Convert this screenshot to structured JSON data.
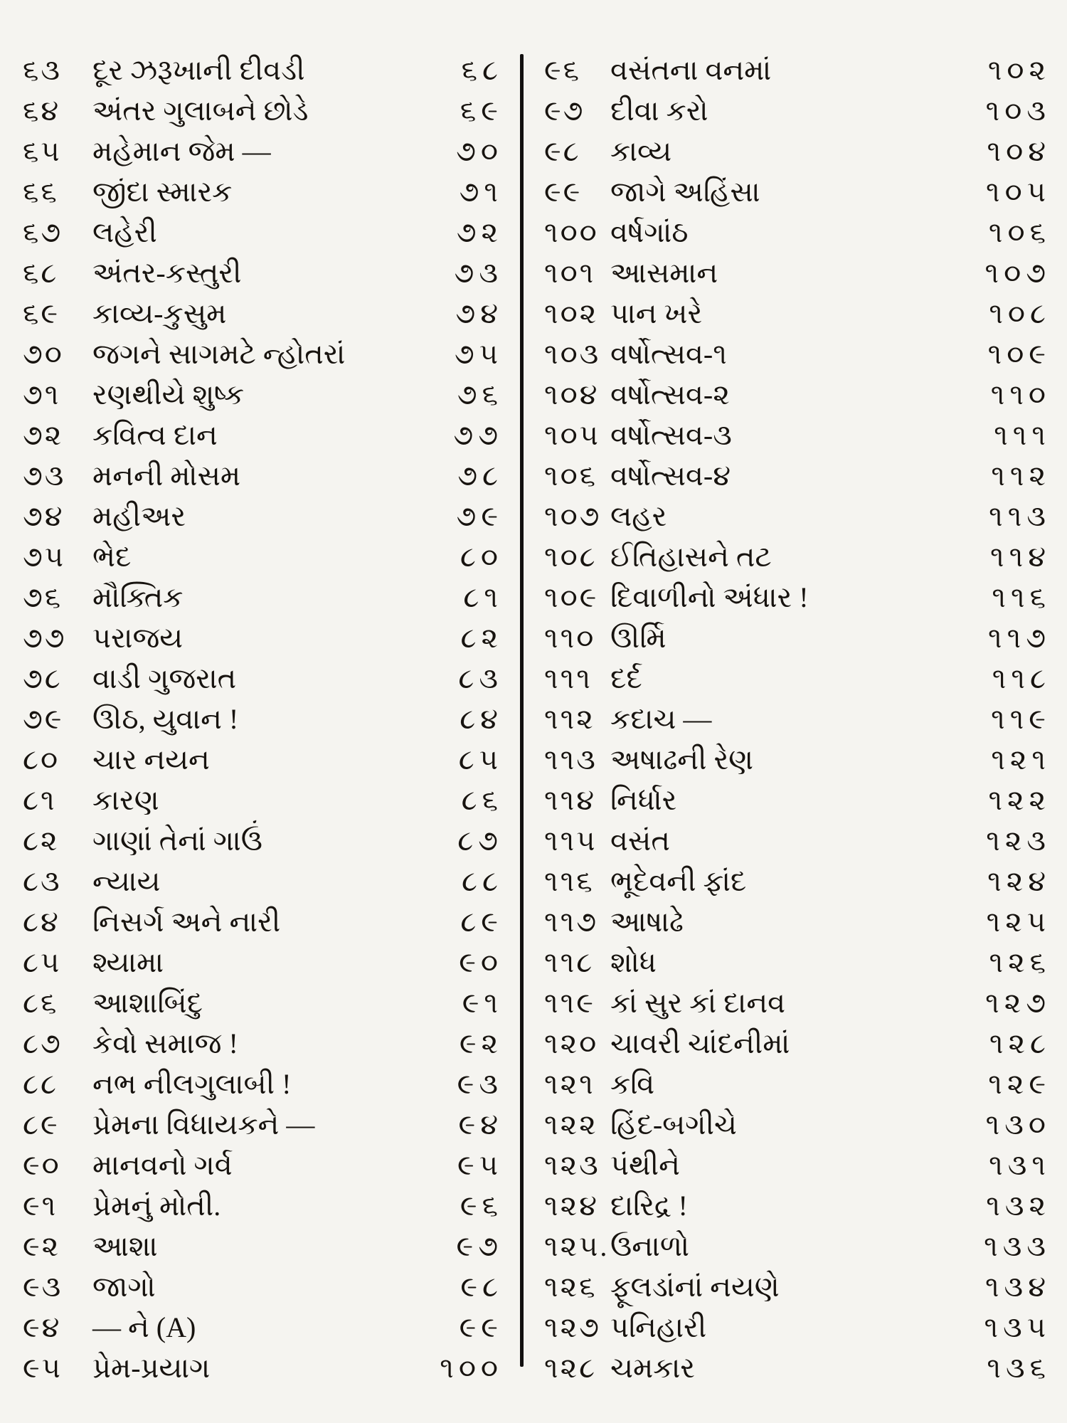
{
  "page": {
    "background": "#f5f4f0",
    "ink": "#17130f",
    "divider_color": "#121010"
  },
  "toc": {
    "left": {
      "rows": [
        {
          "no": "૬૩",
          "title": "દૂર ઝરૂખાની દીવડી",
          "page": "૬૮"
        },
        {
          "no": "૬૪",
          "title": "અંતર ગુલાબને છોડે",
          "page": "૬૯"
        },
        {
          "no": "૬૫",
          "title": "મહેમાન જેમ —",
          "page": "૭૦"
        },
        {
          "no": "૬૬",
          "title": "જીંદા સ્મારક",
          "page": "૭૧"
        },
        {
          "no": "૬૭",
          "title": "લહેરી",
          "page": "૭૨"
        },
        {
          "no": "૬૮",
          "title": "અંતર-કસ્તુરી",
          "page": "૭૩"
        },
        {
          "no": "૬૯",
          "title": "કાવ્ય-કુસુમ",
          "page": "૭૪"
        },
        {
          "no": "૭૦",
          "title": "જગને સાગમટે ન્હોતરાં",
          "page": "૭૫"
        },
        {
          "no": "૭૧",
          "title": "રણથીયે શુષ્ક",
          "page": "૭૬"
        },
        {
          "no": "૭૨",
          "title": "કવિત્વ દાન",
          "page": "૭૭"
        },
        {
          "no": "૭૩",
          "title": "મનની મોસમ",
          "page": "૭૮"
        },
        {
          "no": "૭૪",
          "title": "મહીઅર",
          "page": "૭૯"
        },
        {
          "no": "૭૫",
          "title": "ભેદ",
          "page": "૮૦"
        },
        {
          "no": "૭૬",
          "title": "મૌક્તિક",
          "page": "૮૧"
        },
        {
          "no": "૭૭",
          "title": "પરાજય",
          "page": "૮૨"
        },
        {
          "no": "૭૮",
          "title": "વાડી ગુજરાત",
          "page": "૮૩"
        },
        {
          "no": "૭૯",
          "title": "ઊઠ, યુવાન !",
          "page": "૮૪"
        },
        {
          "no": "૮૦",
          "title": "ચાર નયન",
          "page": "૮૫"
        },
        {
          "no": "૮૧",
          "title": "કારણ",
          "page": "૮૬"
        },
        {
          "no": "૮૨",
          "title": "ગાણાં તેનાં ગાઉં",
          "page": "૮૭"
        },
        {
          "no": "૮૩",
          "title": "ન્યાય",
          "page": "૮૮"
        },
        {
          "no": "૮૪",
          "title": "નિસર્ગ અને નારી",
          "page": "૮૯"
        },
        {
          "no": "૮૫",
          "title": "શ્યામા",
          "page": "૯૦"
        },
        {
          "no": "૮૬",
          "title": "આશાબિંદુ",
          "page": "૯૧"
        },
        {
          "no": "૮૭",
          "title": "કેવો સમાજ !",
          "page": "૯૨"
        },
        {
          "no": "૮૮",
          "title": "નભ નીલગુલાબી !",
          "page": "૯૩"
        },
        {
          "no": "૮૯",
          "title": "પ્રેમના વિધાયકને —",
          "page": "૯૪"
        },
        {
          "no": "૯૦",
          "title": "માનવનો ગર્વ",
          "page": "૯૫"
        },
        {
          "no": "૯૧",
          "title": "પ્રેમનું મોતી.",
          "page": "૯૬"
        },
        {
          "no": "૯૨",
          "title": "આશા",
          "page": "૯૭"
        },
        {
          "no": "૯૩",
          "title": "જાગો",
          "page": "૯૮"
        },
        {
          "no": "૯૪",
          "title": "— ને (A)",
          "page": "૯૯"
        },
        {
          "no": "૯૫",
          "title": "પ્રેમ-પ્રયાગ",
          "page": "૧૦૦"
        }
      ]
    },
    "right": {
      "rows": [
        {
          "no": "૯૬",
          "title": "વસંતના વનમાં",
          "page": "૧૦૨"
        },
        {
          "no": "૯૭",
          "title": "દીવા કરો",
          "page": "૧૦૩"
        },
        {
          "no": "૯૮",
          "title": "કાવ્ય",
          "page": "૧૦૪"
        },
        {
          "no": "૯૯",
          "title": "જાગે અહિંસા",
          "page": "૧૦૫"
        },
        {
          "no": "૧૦૦",
          "title": "વર્ષગાંઠ",
          "page": "૧૦૬"
        },
        {
          "no": "૧૦૧",
          "title": "આસમાન",
          "page": "૧૦૭"
        },
        {
          "no": "૧૦૨",
          "title": "પાન ખરે",
          "page": "૧૦૮"
        },
        {
          "no": "૧૦૩",
          "title": "વર્ષોત્સવ-૧",
          "page": "૧૦૯"
        },
        {
          "no": "૧૦૪",
          "title": "વર્ષોત્સવ-૨",
          "page": "૧૧૦"
        },
        {
          "no": "૧૦૫",
          "title": "વર્ષોત્સવ-૩",
          "page": "૧૧૧"
        },
        {
          "no": "૧૦૬",
          "title": "વર્ષોત્સવ-૪",
          "page": "૧૧૨"
        },
        {
          "no": "૧૦૭",
          "title": "લહર",
          "page": "૧૧૩"
        },
        {
          "no": "૧૦૮",
          "title": "ઈતિહાસને તટ",
          "page": "૧૧૪"
        },
        {
          "no": "૧૦૯",
          "title": "દિવાળીનો અંધાર !",
          "page": "૧૧૬"
        },
        {
          "no": "૧૧૦",
          "title": "ઊર્મિ",
          "page": "૧૧૭"
        },
        {
          "no": "૧૧૧",
          "title": "દર્દ",
          "page": "૧૧૮"
        },
        {
          "no": "૧૧૨",
          "title": "કદાચ —",
          "page": "૧૧૯"
        },
        {
          "no": "૧૧૩",
          "title": "અષાઢની રેણ",
          "page": "૧૨૧"
        },
        {
          "no": "૧૧૪",
          "title": "નિર્ધાર",
          "page": "૧૨૨"
        },
        {
          "no": "૧૧૫",
          "title": "વસંત",
          "page": "૧૨૩"
        },
        {
          "no": "૧૧૬",
          "title": "ભૂદેવની ફાંદ",
          "page": "૧૨૪"
        },
        {
          "no": "૧૧૭",
          "title": "આષાઢે",
          "page": "૧૨૫"
        },
        {
          "no": "૧૧૮",
          "title": "શોધ",
          "page": "૧૨૬"
        },
        {
          "no": "૧૧૯",
          "title": "કાં સુર કાં દાનવ",
          "page": "૧૨૭"
        },
        {
          "no": "૧૨૦",
          "title": "ચાવરી ચાંદનીમાં",
          "page": "૧૨૮"
        },
        {
          "no": "૧૨૧",
          "title": "કવિ",
          "page": "૧૨૯"
        },
        {
          "no": "૧૨૨",
          "title": "હિંદ-બગીચે",
          "page": "૧૩૦"
        },
        {
          "no": "૧૨૩",
          "title": "પંથીને",
          "page": "૧૩૧"
        },
        {
          "no": "૧૨૪",
          "title": "દારિદ્ર !",
          "page": "૧૩૨"
        },
        {
          "no": "૧૨૫.",
          "title": "ઉનાળો",
          "page": "૧૩૩"
        },
        {
          "no": "૧૨૬",
          "title": "ફૂલડાંનાં નયણે",
          "page": "૧૩૪"
        },
        {
          "no": "૧૨૭",
          "title": "પનિહારી",
          "page": "૧૩૫"
        },
        {
          "no": "૧૨૮",
          "title": "ચમકાર",
          "page": "૧૩૬"
        }
      ]
    }
  }
}
